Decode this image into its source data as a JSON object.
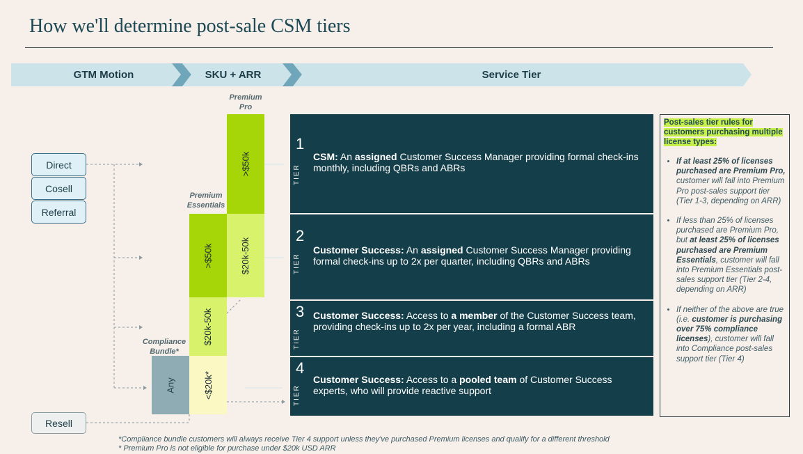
{
  "title": "How we'll determine post-sale CSM tiers",
  "header": {
    "gtm": "GTM Motion",
    "sku": "SKU + ARR",
    "service": "Service Tier"
  },
  "motions": [
    "Direct",
    "Cosell",
    "Referral",
    "Resell"
  ],
  "sku": {
    "premium_pro_label": "Premium Pro",
    "premium_essentials_label": "Premium Essentials",
    "compliance_label": "Compliance Bundle*",
    "pro_gt50": ">$50k",
    "pro_20_50": "$20k-50k",
    "ess_gt50": ">$50k",
    "ess_20_50": "$20k-50k",
    "ess_lt20": "<$20k*",
    "compliance_any": "Any"
  },
  "tiers": [
    {
      "num": "1",
      "word": "TIER",
      "lead": "CSM:",
      "pre": " An ",
      "bold": "assigned",
      "rest": " Customer Success Manager providing formal check-ins monthly, including QBRs and ABRs"
    },
    {
      "num": "2",
      "word": "TIER",
      "lead": "Customer Success:",
      "pre": " An ",
      "bold": "assigned",
      "rest": " Customer Success Manager providing formal check-ins up to 2x per quarter, including QBRs and ABRs"
    },
    {
      "num": "3",
      "word": "TIER",
      "lead": "Customer Success:",
      "pre": " Access to ",
      "bold": "a member",
      "rest": " of the Customer Success team, providing check-ins up to 2x per year, including a formal ABR"
    },
    {
      "num": "4",
      "word": "TIER",
      "lead": "Customer Success:",
      "pre": " Access to a ",
      "bold": "pooled team",
      "rest": " of Customer Success experts, who will provide reactive support"
    }
  ],
  "rules": {
    "heading": "Post-sales tier rules for customers purchasing multiple license types:",
    "r1_bold": "If at least 25% of licenses purchased are Premium Pro,",
    "r1_rest": " customer will fall into Premium Pro post-sales support tier (Tier 1-3, depending on ARR)",
    "r2_pre": "If less than 25% of licenses purchased are Premium Pro, but ",
    "r2_bold": "at least 25% of licenses purchased are Premium Essentials",
    "r2_rest": ", customer will fall into Premium Essentials post-sales support tier (Tier 2-4, depending on ARR)",
    "r3_pre": "If neither of the above are true (i.e. ",
    "r3_bold": "customer is purchasing over 75% compliance licenses",
    "r3_rest": "), customer will fall into Compliance post-sales support tier (Tier 4)"
  },
  "footnotes": [
    "*Compliance bundle customers will always receive Tier 4 support unless they've purchased Premium licenses and qualify for a different threshold",
    "* Premium Pro is not eligible for purchase under $20k USD ARR"
  ],
  "colors": {
    "tier_bg": "#143f4a",
    "pro_green": "#a6d608",
    "ess_light": "#d9f26b",
    "pale_yellow": "#fbf8c4",
    "compliance_gray": "#8fabb4",
    "highlight": "#c9f04a"
  }
}
